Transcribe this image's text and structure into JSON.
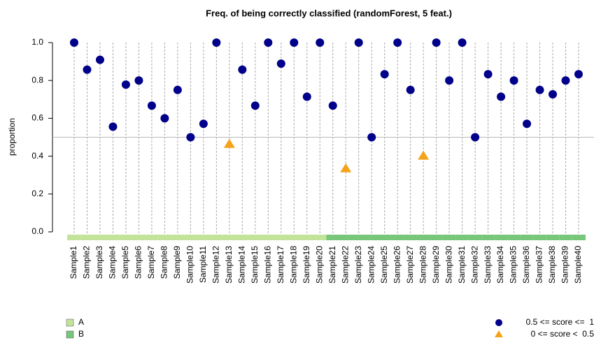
{
  "chart_data": {
    "type": "scatter",
    "title": "Freq. of being correctly classified (randomForest, 5 feat.)",
    "y_label": "proportion",
    "categories": [
      "Sample1",
      "Sample2",
      "Sample3",
      "Sample4",
      "Sample5",
      "Sample6",
      "Sample7",
      "Sample8",
      "Sample9",
      "Sample10",
      "Sample11",
      "Sample12",
      "Sample13",
      "Sample14",
      "Sample15",
      "Sample16",
      "Sample17",
      "Sample18",
      "Sample19",
      "Sample20",
      "Sample21",
      "Sample22",
      "Sample23",
      "Sample24",
      "Sample25",
      "Sample26",
      "Sample27",
      "Sample28",
      "Sample29",
      "Sample30",
      "Sample31",
      "Sample32",
      "Sample33",
      "Sample34",
      "Sample35",
      "Sample36",
      "Sample37",
      "Sample38",
      "Sample39",
      "Sample40"
    ],
    "series": [
      {
        "name": "0.5 <= score <=  1",
        "color": "#00008b",
        "marker": "circle",
        "values": [
          1.0,
          0.857,
          0.909,
          0.556,
          0.778,
          0.8,
          0.667,
          0.6,
          0.75,
          0.5,
          0.571,
          1.0,
          null,
          0.857,
          0.667,
          1.0,
          0.889,
          1.0,
          0.714,
          1.0,
          0.667,
          null,
          1.0,
          0.5,
          0.833,
          1.0,
          0.75,
          null,
          1.0,
          0.8,
          1.0,
          0.5,
          0.833,
          0.714,
          0.8,
          0.571,
          0.75,
          0.727,
          0.8,
          0.833
        ]
      },
      {
        "name": "0 <= score <  0.5",
        "color": "#f5a31a",
        "marker": "triangle",
        "values": [
          null,
          null,
          null,
          null,
          null,
          null,
          null,
          null,
          null,
          null,
          null,
          null,
          0.462,
          null,
          null,
          null,
          null,
          null,
          null,
          null,
          null,
          0.333,
          null,
          null,
          null,
          null,
          null,
          0.4,
          null,
          null,
          null,
          null,
          null,
          null,
          null,
          null,
          null,
          null,
          null,
          null
        ]
      }
    ],
    "groups": [
      {
        "name": "A",
        "color": "#c2e39a"
      },
      {
        "name": "B",
        "color": "#78c67a"
      }
    ],
    "membership": [
      "A",
      "A",
      "A",
      "A",
      "A",
      "A",
      "A",
      "A",
      "A",
      "A",
      "A",
      "A",
      "A",
      "A",
      "A",
      "A",
      "A",
      "A",
      "A",
      "A",
      "B",
      "B",
      "B",
      "B",
      "B",
      "B",
      "B",
      "B",
      "B",
      "B",
      "B",
      "B",
      "B",
      "B",
      "B",
      "B",
      "B",
      "B",
      "B",
      "B"
    ],
    "threshold": 0.5,
    "ylim": [
      0,
      1
    ],
    "yticks": [
      {
        "value": 0,
        "label": "0.0"
      },
      0.2,
      0.4,
      0.6,
      0.8,
      {
        "value": 1,
        "label": "1.0"
      }
    ],
    "grid": true
  }
}
